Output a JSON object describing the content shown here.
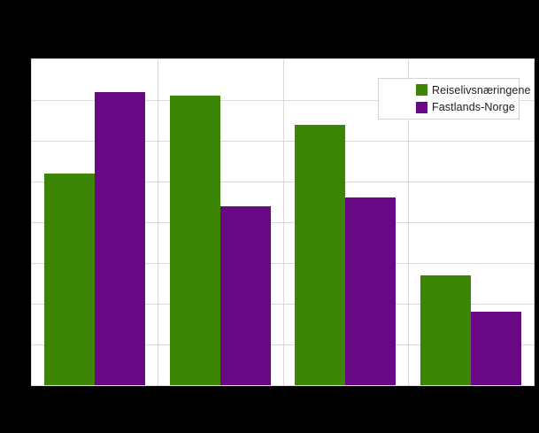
{
  "window": {
    "background_color": "#000000",
    "title_visible": false
  },
  "plot": {
    "background_color": "#ffffff",
    "border_color": "#d9d9d9",
    "gridline_color": "#d9d9d9"
  },
  "legend": {
    "border_color": "#d3d3d3",
    "background_color": "#ffffff",
    "text_color": "#202020",
    "items": [
      {
        "label": "Reiselivsnæringene",
        "color": "#3C8505",
        "icon": "square-swatch"
      },
      {
        "label": "Fastlands-Norge",
        "color": "#690887",
        "icon": "square-swatch"
      }
    ]
  },
  "chart_data": {
    "type": "bar",
    "grouped": true,
    "categories": [
      "",
      "",
      "",
      ""
    ],
    "series": [
      {
        "name": "Reiselivsnæringene",
        "color": "#3C8505",
        "values": [
          5.2,
          7.1,
          6.4,
          2.7
        ]
      },
      {
        "name": "Fastlands-Norge",
        "color": "#690887",
        "values": [
          7.2,
          4.4,
          4.6,
          1.8
        ]
      }
    ],
    "value_unit": "gridline-intervals (y-axis tick labels not visible in image)",
    "ylim": [
      0,
      8
    ],
    "y_gridline_intervals": 8,
    "x_gridline_sections": 4,
    "x_tick_labels_visible": false,
    "y_tick_labels_visible": false,
    "grid": true,
    "legend_position": "top-right-inside",
    "bar_width_fraction_of_plot": 0.1004
  }
}
